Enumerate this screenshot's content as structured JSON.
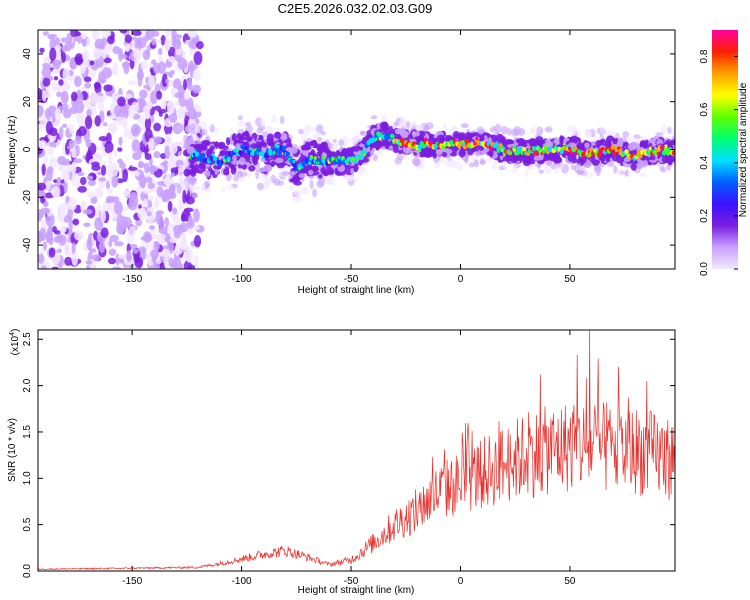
{
  "title": "C2E5.2026.032.02.03.G09",
  "colors": {
    "signal_line": "#e8312c",
    "background": "#ffffff",
    "axis": "#000000"
  },
  "chart_data": [
    {
      "type": "heatmap",
      "name": "spectrogram",
      "xlabel": "Height of straight line (km)",
      "ylabel": "Frequency (Hz)",
      "xlim": [
        -193,
        98
      ],
      "ylim": [
        -50,
        50
      ],
      "xticks": [
        -150,
        -100,
        -50,
        0,
        50
      ],
      "xtick_labels": [
        "-150",
        "-100",
        "-50",
        "0",
        "50"
      ],
      "yticks": [
        -40,
        -20,
        0,
        20,
        40
      ],
      "ytick_labels": [
        "-40",
        "-20",
        "0",
        "20",
        "40"
      ],
      "ridge": {
        "description_free_values": true,
        "height_km": [
          -120,
          -110,
          -100,
          -90,
          -80,
          -75,
          -70,
          -60,
          -50,
          -45,
          -40,
          -35,
          -30,
          -25,
          -20,
          -10,
          0,
          10,
          20,
          30,
          40,
          50,
          60,
          70,
          80,
          90,
          98
        ],
        "frequency_hz": [
          -3,
          -5,
          0,
          -2,
          0,
          -8,
          -4,
          -5,
          -5,
          -2,
          5,
          6,
          4,
          3,
          2,
          2,
          2,
          3,
          0,
          -1,
          0,
          0,
          -2,
          0,
          -3,
          0,
          -1
        ]
      },
      "noise_region_km": [
        -193,
        -125
      ],
      "colorbar": {
        "label": "Normalized spectral amplitude",
        "range": [
          0.0,
          0.9
        ],
        "ticks": [
          0.0,
          0.2,
          0.4,
          0.6,
          0.8
        ],
        "tick_labels": [
          "0.0",
          "0.2",
          "0.4",
          "0.6",
          "0.8"
        ],
        "stops": [
          "#f2e8ff",
          "#c8a0ff",
          "#7a1de0",
          "#3b10ff",
          "#0060ff",
          "#00e0ff",
          "#00ff70",
          "#60ff00",
          "#ffff00",
          "#ffa000",
          "#ff2000",
          "#ff00a0"
        ]
      }
    },
    {
      "type": "line",
      "name": "snr",
      "xlabel": "Height of straight line (km)",
      "ylabel": "SNR (10 * v/v)",
      "y_multiplier": "(x10",
      "y_multiplier_exp": "4",
      "y_multiplier_close": ")",
      "xlim": [
        -193,
        98
      ],
      "ylim": [
        0,
        2.6
      ],
      "xticks": [
        -150,
        -100,
        -50,
        0,
        50
      ],
      "xtick_labels": [
        "-150",
        "-100",
        "-50",
        "0",
        "50"
      ],
      "yticks": [
        0.0,
        0.5,
        1.0,
        1.5,
        2.0,
        2.5
      ],
      "ytick_labels": [
        "0.0",
        "0.5",
        "1.0",
        "1.5",
        "2.0",
        "2.5"
      ],
      "envelope": {
        "height_km": [
          -193,
          -150,
          -120,
          -110,
          -100,
          -90,
          -80,
          -70,
          -60,
          -50,
          -40,
          -30,
          -20,
          -10,
          0,
          10,
          20,
          30,
          40,
          50,
          60,
          70,
          80,
          90,
          98
        ],
        "snr_x1e4": [
          0.02,
          0.03,
          0.04,
          0.08,
          0.13,
          0.18,
          0.22,
          0.15,
          0.07,
          0.12,
          0.3,
          0.5,
          0.65,
          0.85,
          0.95,
          1.05,
          1.15,
          1.25,
          1.3,
          1.35,
          1.35,
          1.3,
          1.3,
          1.25,
          1.2
        ]
      },
      "peak": {
        "height_km": 59,
        "snr_x1e4": 2.6
      }
    }
  ]
}
